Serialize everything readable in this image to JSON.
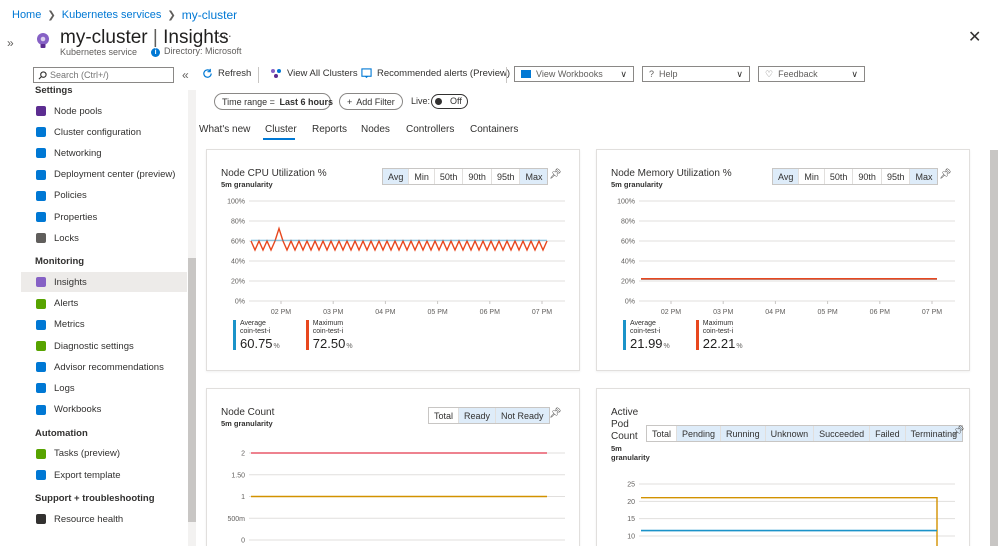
{
  "breadcrumb": {
    "items": [
      "Home",
      "Kubernetes services"
    ],
    "current": "my-cluster"
  },
  "header": {
    "name": "my-cluster",
    "divider": "|",
    "page": "Insights",
    "more": "···",
    "resource_type": "Kubernetes service",
    "directory": "Directory: Microsoft"
  },
  "sidebar": {
    "search_placeholder": "Search (Ctrl+/)",
    "sections": [
      {
        "title": "Settings",
        "items": [
          {
            "label": "Node pools",
            "icon": "node-pools-icon",
            "color": "#5c2d91"
          },
          {
            "label": "Cluster configuration",
            "icon": "cluster-config-icon",
            "color": "#0078d4"
          },
          {
            "label": "Networking",
            "icon": "networking-icon",
            "color": "#0078d4"
          },
          {
            "label": "Deployment center (preview)",
            "icon": "deployment-icon",
            "color": "#0078d4"
          },
          {
            "label": "Policies",
            "icon": "policies-icon",
            "color": "#0078d4"
          },
          {
            "label": "Properties",
            "icon": "properties-icon",
            "color": "#0078d4"
          },
          {
            "label": "Locks",
            "icon": "lock-icon",
            "color": "#605e5c"
          }
        ]
      },
      {
        "title": "Monitoring",
        "items": [
          {
            "label": "Insights",
            "icon": "insights-icon",
            "color": "#8661c5",
            "active": true
          },
          {
            "label": "Alerts",
            "icon": "alerts-icon",
            "color": "#57a300"
          },
          {
            "label": "Metrics",
            "icon": "metrics-icon",
            "color": "#0078d4"
          },
          {
            "label": "Diagnostic settings",
            "icon": "diagnostic-icon",
            "color": "#57a300"
          },
          {
            "label": "Advisor recommendations",
            "icon": "advisor-icon",
            "color": "#0078d4"
          },
          {
            "label": "Logs",
            "icon": "logs-icon",
            "color": "#0078d4"
          },
          {
            "label": "Workbooks",
            "icon": "workbooks-icon",
            "color": "#0078d4"
          }
        ]
      },
      {
        "title": "Automation",
        "items": [
          {
            "label": "Tasks (preview)",
            "icon": "tasks-icon",
            "color": "#57a300"
          },
          {
            "label": "Export template",
            "icon": "export-template-icon",
            "color": "#0078d4"
          }
        ]
      },
      {
        "title": "Support + troubleshooting",
        "items": [
          {
            "label": "Resource health",
            "icon": "resource-health-icon",
            "color": "#323130"
          }
        ]
      }
    ]
  },
  "toolbar": {
    "refresh": "Refresh",
    "view_all_clusters": "View All Clusters",
    "recommended_alerts": "Recommended alerts (Preview)",
    "view_workbooks": "View Workbooks",
    "help": "Help",
    "feedback": "Feedback"
  },
  "filters": {
    "time_range_label": "Time range = ",
    "time_range_value": "Last 6 hours",
    "add_filter": "Add Filter",
    "live_label": "Live:",
    "live_state": "Off"
  },
  "tabs": [
    "What's new",
    "Cluster",
    "Reports",
    "Nodes",
    "Controllers",
    "Containers"
  ],
  "active_tab": "Cluster",
  "cards": {
    "cpu": {
      "title": "Node CPU Utilization %",
      "granularity": "5m granularity",
      "aggs": [
        "Avg",
        "Min",
        "50th",
        "90th",
        "95th",
        "Max"
      ],
      "selected": [
        "Avg",
        "Max"
      ],
      "metrics": [
        {
          "label": "Average",
          "sub": "coin-test-i",
          "value": "60.75",
          "unit": "%",
          "color": "#1b93c9"
        },
        {
          "label": "Maximum",
          "sub": "coin-test-i",
          "value": "72.50",
          "unit": "%",
          "color": "#e8471e"
        }
      ]
    },
    "memory": {
      "title": "Node Memory Utilization %",
      "granularity": "5m granularity",
      "aggs": [
        "Avg",
        "Min",
        "50th",
        "90th",
        "95th",
        "Max"
      ],
      "selected": [
        "Avg",
        "Max"
      ],
      "metrics": [
        {
          "label": "Average",
          "sub": "coin-test-i",
          "value": "21.99",
          "unit": "%",
          "color": "#1b93c9"
        },
        {
          "label": "Maximum",
          "sub": "coin-test-i",
          "value": "22.21",
          "unit": "%",
          "color": "#e8471e"
        }
      ]
    },
    "node_count": {
      "title": "Node Count",
      "granularity": "5m granularity",
      "aggs": [
        "Total",
        "Ready",
        "Not Ready"
      ],
      "selected": [
        "Ready",
        "Not Ready"
      ]
    },
    "pod_count": {
      "title_lines": [
        "Active",
        "Pod",
        "Count"
      ],
      "granularity_lines": [
        "5m",
        "granularity"
      ],
      "aggs": [
        "Total",
        "Pending",
        "Running",
        "Unknown",
        "Succeeded",
        "Failed",
        "Terminating"
      ],
      "selected": [
        "Pending",
        "Running",
        "Unknown",
        "Succeeded",
        "Failed",
        "Terminating"
      ]
    }
  },
  "chart_data": [
    {
      "type": "line",
      "title": "Node CPU Utilization %",
      "x": [
        "02 PM",
        "03 PM",
        "04 PM",
        "05 PM",
        "06 PM",
        "07 PM"
      ],
      "yticks": [
        "0%",
        "20%",
        "40%",
        "60%",
        "80%",
        "100%"
      ],
      "ylim": [
        0,
        100
      ],
      "series": [
        {
          "name": "Maximum",
          "color": "#e8471e",
          "baseline": 60,
          "dips_to": 51,
          "spike_at_index": 3,
          "spike_value": 72.5,
          "points": 38
        },
        {
          "name": "Average",
          "color": "#1b93c9",
          "baseline": 60.75
        }
      ]
    },
    {
      "type": "line",
      "title": "Node Memory Utilization %",
      "x": [
        "02 PM",
        "03 PM",
        "04 PM",
        "05 PM",
        "06 PM",
        "07 PM"
      ],
      "yticks": [
        "0%",
        "20%",
        "40%",
        "60%",
        "80%",
        "100%"
      ],
      "ylim": [
        0,
        100
      ],
      "series": [
        {
          "name": "Maximum",
          "color": "#e8471e",
          "value": 22.21
        },
        {
          "name": "Average",
          "color": "#1b93c9",
          "value": 21.99
        }
      ]
    },
    {
      "type": "line",
      "title": "Node Count",
      "yticks": [
        "0",
        "500m",
        "1",
        "1.50",
        "2"
      ],
      "ylim": [
        0,
        2
      ],
      "series": [
        {
          "name": "Total",
          "color": "#e8596a",
          "value": 2
        },
        {
          "name": "Ready",
          "color": "#d29200",
          "value": 1
        }
      ]
    },
    {
      "type": "line",
      "title": "Active Pod Count",
      "yticks": [
        "10",
        "15",
        "20",
        "25"
      ],
      "ylim": [
        8,
        27
      ],
      "series": [
        {
          "name": "Running",
          "color": "#d29200",
          "value": 22
        },
        {
          "name": "Total",
          "color": "#1b93c9",
          "value": 10
        }
      ]
    }
  ]
}
